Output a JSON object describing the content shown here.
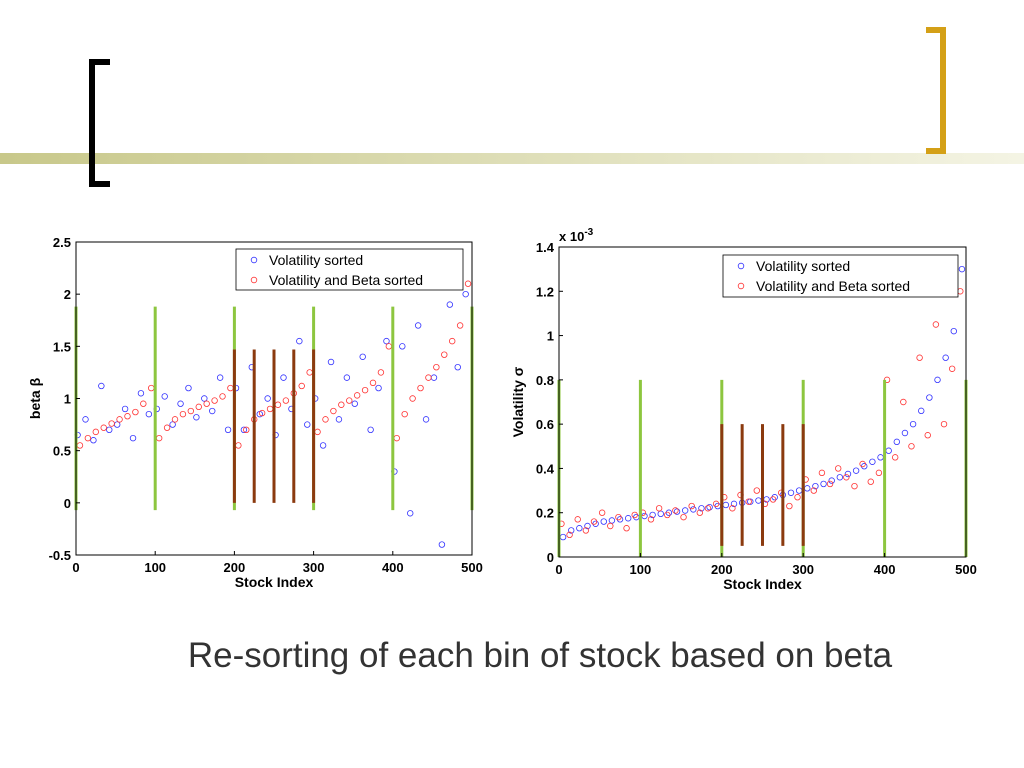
{
  "caption": "Re-sorting of each bin of stock based on beta",
  "chart_data": [
    {
      "type": "scatter",
      "xlabel": "Stock Index",
      "ylabel": "beta β",
      "xlim": [
        0,
        500
      ],
      "xticks": [
        0,
        100,
        200,
        300,
        400,
        500
      ],
      "ylim": [
        -0.5,
        2.5
      ],
      "yticks": [
        -0.5,
        0,
        0.5,
        1,
        1.5,
        2,
        2.5
      ],
      "series": [
        {
          "name": "Volatility sorted",
          "color": "#3333ff",
          "x": [
            2,
            12,
            22,
            32,
            42,
            52,
            62,
            72,
            82,
            92,
            102,
            112,
            122,
            132,
            142,
            152,
            162,
            172,
            182,
            192,
            202,
            212,
            222,
            232,
            242,
            252,
            262,
            272,
            282,
            292,
            302,
            312,
            322,
            332,
            342,
            352,
            362,
            372,
            382,
            392,
            402,
            412,
            422,
            432,
            442,
            452,
            462,
            472,
            482,
            492
          ],
          "values": [
            0.65,
            0.8,
            0.6,
            1.12,
            0.7,
            0.75,
            0.9,
            0.62,
            1.05,
            0.85,
            0.9,
            1.02,
            0.75,
            0.95,
            1.1,
            0.82,
            1.0,
            0.88,
            1.2,
            0.7,
            1.1,
            0.7,
            1.3,
            0.85,
            1.0,
            0.65,
            1.2,
            0.9,
            1.55,
            0.75,
            1.0,
            0.55,
            1.35,
            0.8,
            1.2,
            0.95,
            1.4,
            0.7,
            1.1,
            1.55,
            0.3,
            1.5,
            -0.1,
            1.7,
            0.8,
            1.2,
            -0.4,
            1.9,
            1.3,
            2.0
          ]
        },
        {
          "name": "Volatility and Beta sorted",
          "color": "#ff3333",
          "x": [
            5,
            15,
            25,
            35,
            45,
            55,
            65,
            75,
            85,
            95,
            105,
            115,
            125,
            135,
            145,
            155,
            165,
            175,
            185,
            195,
            205,
            215,
            225,
            235,
            245,
            255,
            265,
            275,
            285,
            295,
            305,
            315,
            325,
            335,
            345,
            355,
            365,
            375,
            385,
            395,
            405,
            415,
            425,
            435,
            445,
            455,
            465,
            475,
            485,
            495
          ],
          "values": [
            0.55,
            0.62,
            0.68,
            0.72,
            0.76,
            0.8,
            0.83,
            0.87,
            0.95,
            1.1,
            0.62,
            0.72,
            0.8,
            0.85,
            0.88,
            0.92,
            0.95,
            0.98,
            1.02,
            1.1,
            0.55,
            0.7,
            0.8,
            0.86,
            0.9,
            0.94,
            0.98,
            1.05,
            1.12,
            1.25,
            0.68,
            0.8,
            0.88,
            0.94,
            0.98,
            1.03,
            1.08,
            1.15,
            1.25,
            1.5,
            0.62,
            0.85,
            1.0,
            1.1,
            1.2,
            1.3,
            1.42,
            1.55,
            1.7,
            2.1
          ]
        }
      ],
      "vlines": [
        {
          "x": 0,
          "ymin": -0.07,
          "ymax": 1.88,
          "color": "#8dc63f"
        },
        {
          "x": 100,
          "ymin": -0.07,
          "ymax": 1.88,
          "color": "#8dc63f"
        },
        {
          "x": 200,
          "ymin": -0.07,
          "ymax": 1.88,
          "color": "#8dc63f"
        },
        {
          "x": 300,
          "ymin": -0.07,
          "ymax": 1.88,
          "color": "#8dc63f"
        },
        {
          "x": 400,
          "ymin": -0.07,
          "ymax": 1.88,
          "color": "#8dc63f"
        },
        {
          "x": 500,
          "ymin": -0.07,
          "ymax": 1.88,
          "color": "#8dc63f"
        },
        {
          "x": 200,
          "ymin": 0.0,
          "ymax": 1.47,
          "color": "#8b3a0f"
        },
        {
          "x": 225,
          "ymin": 0.0,
          "ymax": 1.47,
          "color": "#8b3a0f"
        },
        {
          "x": 250,
          "ymin": 0.0,
          "ymax": 1.47,
          "color": "#8b3a0f"
        },
        {
          "x": 275,
          "ymin": 0.0,
          "ymax": 1.47,
          "color": "#8b3a0f"
        },
        {
          "x": 300,
          "ymin": 0.0,
          "ymax": 1.47,
          "color": "#8b3a0f"
        }
      ],
      "legend": "upper right"
    },
    {
      "type": "scatter",
      "xlabel": "Stock Index",
      "ylabel": "Volatility σ",
      "yscale_base": "x 10",
      "yscale_exponent": "-3",
      "xlim": [
        0,
        500
      ],
      "xticks": [
        0,
        100,
        200,
        300,
        400,
        500
      ],
      "ylim": [
        0,
        1.4
      ],
      "yticks": [
        0,
        0.2,
        0.4,
        0.6,
        0.8,
        1,
        1.2,
        1.4
      ],
      "series": [
        {
          "name": "Volatility sorted",
          "color": "#3333ff",
          "x": [
            5,
            15,
            25,
            35,
            45,
            55,
            65,
            75,
            85,
            95,
            105,
            115,
            125,
            135,
            145,
            155,
            165,
            175,
            185,
            195,
            205,
            215,
            225,
            235,
            245,
            255,
            265,
            275,
            285,
            295,
            305,
            315,
            325,
            335,
            345,
            355,
            365,
            375,
            385,
            395,
            405,
            415,
            425,
            435,
            445,
            455,
            465,
            475,
            485,
            495
          ],
          "values": [
            0.09,
            0.12,
            0.13,
            0.14,
            0.15,
            0.16,
            0.165,
            0.17,
            0.175,
            0.18,
            0.185,
            0.19,
            0.195,
            0.2,
            0.205,
            0.21,
            0.215,
            0.22,
            0.225,
            0.23,
            0.235,
            0.24,
            0.245,
            0.25,
            0.255,
            0.26,
            0.27,
            0.28,
            0.29,
            0.3,
            0.31,
            0.32,
            0.33,
            0.345,
            0.36,
            0.375,
            0.39,
            0.41,
            0.43,
            0.45,
            0.48,
            0.52,
            0.56,
            0.6,
            0.66,
            0.72,
            0.8,
            0.9,
            1.02,
            1.3
          ]
        },
        {
          "name": "Volatility and Beta sorted",
          "color": "#ff3333",
          "x": [
            3,
            13,
            23,
            33,
            43,
            53,
            63,
            73,
            83,
            93,
            103,
            113,
            123,
            133,
            143,
            153,
            163,
            173,
            183,
            193,
            203,
            213,
            223,
            233,
            243,
            253,
            263,
            273,
            283,
            293,
            303,
            313,
            323,
            333,
            343,
            353,
            363,
            373,
            383,
            393,
            403,
            413,
            423,
            433,
            443,
            453,
            463,
            473,
            483,
            493
          ],
          "values": [
            0.15,
            0.1,
            0.17,
            0.12,
            0.16,
            0.2,
            0.14,
            0.18,
            0.13,
            0.19,
            0.2,
            0.17,
            0.22,
            0.19,
            0.21,
            0.18,
            0.23,
            0.2,
            0.22,
            0.24,
            0.27,
            0.22,
            0.28,
            0.25,
            0.3,
            0.24,
            0.26,
            0.29,
            0.23,
            0.27,
            0.35,
            0.3,
            0.38,
            0.33,
            0.4,
            0.36,
            0.32,
            0.42,
            0.34,
            0.38,
            0.8,
            0.45,
            0.7,
            0.5,
            0.9,
            0.55,
            1.05,
            0.6,
            0.85,
            1.2
          ]
        }
      ],
      "vlines": [
        {
          "x": 0,
          "ymin": 0,
          "ymax": 0.8,
          "color": "#8dc63f"
        },
        {
          "x": 100,
          "ymin": 0,
          "ymax": 0.8,
          "color": "#8dc63f"
        },
        {
          "x": 200,
          "ymin": 0,
          "ymax": 0.8,
          "color": "#8dc63f"
        },
        {
          "x": 300,
          "ymin": 0,
          "ymax": 0.8,
          "color": "#8dc63f"
        },
        {
          "x": 400,
          "ymin": 0,
          "ymax": 0.8,
          "color": "#8dc63f"
        },
        {
          "x": 500,
          "ymin": 0,
          "ymax": 0.8,
          "color": "#8dc63f"
        },
        {
          "x": 200,
          "ymin": 0.05,
          "ymax": 0.6,
          "color": "#8b3a0f"
        },
        {
          "x": 225,
          "ymin": 0.05,
          "ymax": 0.6,
          "color": "#8b3a0f"
        },
        {
          "x": 250,
          "ymin": 0.05,
          "ymax": 0.6,
          "color": "#8b3a0f"
        },
        {
          "x": 275,
          "ymin": 0.05,
          "ymax": 0.6,
          "color": "#8b3a0f"
        },
        {
          "x": 300,
          "ymin": 0.05,
          "ymax": 0.6,
          "color": "#8b3a0f"
        }
      ],
      "legend": "upper right"
    }
  ]
}
